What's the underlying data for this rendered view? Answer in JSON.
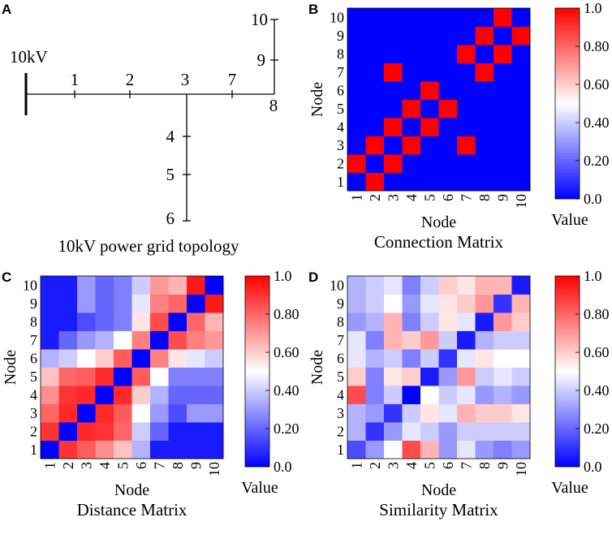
{
  "chart_data": [
    {
      "type": "diagram",
      "panel": "A",
      "caption": "10kV power grid topology",
      "source_label": "10kV",
      "nodes": [
        "1",
        "2",
        "3",
        "4",
        "5",
        "6",
        "7",
        "8",
        "9",
        "10"
      ]
    },
    {
      "type": "heatmap",
      "panel": "B",
      "caption": "Connection Matrix",
      "xlabel": "Node",
      "ylabel": "Node",
      "x_ticks": [
        "1",
        "2",
        "3",
        "4",
        "5",
        "6",
        "7",
        "8",
        "9",
        "10"
      ],
      "y_ticks": [
        "1",
        "2",
        "3",
        "4",
        "5",
        "6",
        "7",
        "8",
        "9",
        "10"
      ],
      "colorbar_title": "Value",
      "colorbar_ticks": [
        "0.0",
        "0.20",
        "0.40",
        "0.60",
        "0.80",
        "1.0"
      ],
      "vmin": 0,
      "vmax": 1,
      "rows_bottom_to_top": [
        [
          0,
          1,
          0,
          0,
          0,
          0,
          0,
          0,
          0,
          0
        ],
        [
          1,
          0,
          1,
          0,
          0,
          0,
          0,
          0,
          0,
          0
        ],
        [
          0,
          1,
          0,
          1,
          0,
          0,
          1,
          0,
          0,
          0
        ],
        [
          0,
          0,
          1,
          0,
          1,
          0,
          0,
          0,
          0,
          0
        ],
        [
          0,
          0,
          0,
          1,
          0,
          1,
          0,
          0,
          0,
          0
        ],
        [
          0,
          0,
          0,
          0,
          1,
          0,
          0,
          0,
          0,
          0
        ],
        [
          0,
          0,
          1,
          0,
          0,
          0,
          0,
          1,
          0,
          0
        ],
        [
          0,
          0,
          0,
          0,
          0,
          0,
          1,
          0,
          1,
          0
        ],
        [
          0,
          0,
          0,
          0,
          0,
          0,
          0,
          1,
          0,
          1
        ],
        [
          0,
          0,
          0,
          0,
          0,
          0,
          0,
          0,
          1,
          0
        ]
      ]
    },
    {
      "type": "heatmap",
      "panel": "C",
      "caption": "Distance Matrix",
      "xlabel": "Node",
      "ylabel": "Node",
      "x_ticks": [
        "1",
        "2",
        "3",
        "4",
        "5",
        "6",
        "7",
        "8",
        "9",
        "10"
      ],
      "y_ticks": [
        "1",
        "2",
        "3",
        "4",
        "5",
        "6",
        "7",
        "8",
        "9",
        "10"
      ],
      "colorbar_title": "Value",
      "colorbar_ticks": [
        "0.0",
        "0.20",
        "0.40",
        "0.60",
        "0.80",
        "1.0"
      ],
      "vmin": 0,
      "vmax": 1,
      "rows_bottom_to_top": [
        [
          0.0,
          0.9,
          0.82,
          0.72,
          0.62,
          0.35,
          0.05,
          0.05,
          0.05,
          0.05
        ],
        [
          0.9,
          0.0,
          0.92,
          0.9,
          0.8,
          0.4,
          0.2,
          0.05,
          0.05,
          0.05
        ],
        [
          0.8,
          0.92,
          0.0,
          0.92,
          0.82,
          0.5,
          0.3,
          0.15,
          0.3,
          0.3
        ],
        [
          0.72,
          0.9,
          0.92,
          0.0,
          0.92,
          0.6,
          0.35,
          0.2,
          0.2,
          0.2
        ],
        [
          0.62,
          0.8,
          0.82,
          0.92,
          0.0,
          0.82,
          0.5,
          0.25,
          0.25,
          0.25
        ],
        [
          0.35,
          0.4,
          0.5,
          0.6,
          0.82,
          0.0,
          0.75,
          0.55,
          0.45,
          0.4
        ],
        [
          0.05,
          0.2,
          0.3,
          0.35,
          0.5,
          0.75,
          0.0,
          0.85,
          0.75,
          0.7
        ],
        [
          0.05,
          0.05,
          0.15,
          0.2,
          0.25,
          0.55,
          0.85,
          0.0,
          0.8,
          0.65
        ],
        [
          0.05,
          0.05,
          0.3,
          0.2,
          0.25,
          0.45,
          0.75,
          0.8,
          0.0,
          0.95
        ],
        [
          0.05,
          0.05,
          0.3,
          0.2,
          0.25,
          0.4,
          0.7,
          0.65,
          0.95,
          0.0
        ]
      ]
    },
    {
      "type": "heatmap",
      "panel": "D",
      "caption": "Similarity Matrix",
      "xlabel": "Node",
      "ylabel": "Node",
      "x_ticks": [
        "1",
        "2",
        "3",
        "4",
        "5",
        "6",
        "7",
        "8",
        "9",
        "10"
      ],
      "y_ticks": [
        "1",
        "2",
        "3",
        "4",
        "5",
        "6",
        "7",
        "8",
        "9",
        "10"
      ],
      "colorbar_title": "Value",
      "colorbar_ticks": [
        "0.0",
        "0.20",
        "0.40",
        "0.60",
        "0.80",
        "1.0"
      ],
      "vmin": 0,
      "vmax": 1,
      "rows_bottom_to_top": [
        [
          0.15,
          0.3,
          0.5,
          0.85,
          0.65,
          0.3,
          0.45,
          0.3,
          0.25,
          0.3
        ],
        [
          0.35,
          0.1,
          0.3,
          0.45,
          0.4,
          0.3,
          0.4,
          0.4,
          0.4,
          0.4
        ],
        [
          0.35,
          0.3,
          0.1,
          0.4,
          0.55,
          0.45,
          0.65,
          0.6,
          0.6,
          0.55
        ],
        [
          0.85,
          0.25,
          0.4,
          0.0,
          0.5,
          0.4,
          0.45,
          0.3,
          0.35,
          0.3
        ],
        [
          0.6,
          0.25,
          0.55,
          0.6,
          0.05,
          0.3,
          0.7,
          0.4,
          0.45,
          0.4
        ],
        [
          0.45,
          0.35,
          0.4,
          0.25,
          0.4,
          0.1,
          0.45,
          0.55,
          0.5,
          0.5
        ],
        [
          0.45,
          0.25,
          0.65,
          0.6,
          0.7,
          0.4,
          0.05,
          0.35,
          0.4,
          0.4
        ],
        [
          0.3,
          0.35,
          0.65,
          0.25,
          0.4,
          0.55,
          0.45,
          0.05,
          0.7,
          0.6
        ],
        [
          0.35,
          0.4,
          0.5,
          0.3,
          0.45,
          0.55,
          0.6,
          0.7,
          0.1,
          0.65
        ],
        [
          0.35,
          0.4,
          0.45,
          0.25,
          0.4,
          0.6,
          0.55,
          0.65,
          0.65,
          0.05
        ]
      ]
    }
  ]
}
